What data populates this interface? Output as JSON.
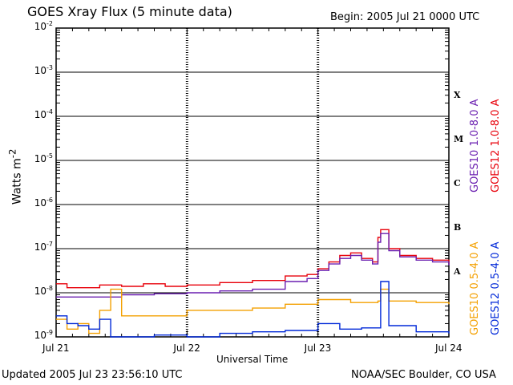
{
  "header": {
    "title": "GOES Xray Flux (5 minute data)",
    "begin": "Begin:  2005 Jul 21 0000 UTC"
  },
  "footer": {
    "updated": "Updated 2005 Jul 23 23:56:10 UTC",
    "credit": "NOAA/SEC Boulder, CO USA"
  },
  "colors": {
    "goes10_long": "#6a1fb0",
    "goes12_long": "#e8000a",
    "goes10_short": "#f4a000",
    "goes12_short": "#0028d8"
  },
  "chart_data": {
    "type": "line",
    "xlabel": "Universal Time",
    "ylabel": "Watts m",
    "ylabel_sup": "-2",
    "yscale": "log",
    "ylim": [
      1e-09,
      0.01
    ],
    "y_ticks": [
      {
        "base": "10",
        "exp": "-9",
        "value": 1e-09
      },
      {
        "base": "10",
        "exp": "-8",
        "value": 1e-08
      },
      {
        "base": "10",
        "exp": "-7",
        "value": 1e-07
      },
      {
        "base": "10",
        "exp": "-6",
        "value": 1e-06
      },
      {
        "base": "10",
        "exp": "-5",
        "value": 1e-05
      },
      {
        "base": "10",
        "exp": "-4",
        "value": 0.0001
      },
      {
        "base": "10",
        "exp": "-3",
        "value": 0.001
      },
      {
        "base": "10",
        "exp": "-2",
        "value": 0.01
      }
    ],
    "xlim": [
      "2005-07-21",
      "2005-07-24"
    ],
    "x_ticks": [
      {
        "label": "Jul 21",
        "value": "2005-07-21"
      },
      {
        "label": "Jul 22",
        "value": "2005-07-22"
      },
      {
        "label": "Jul 23",
        "value": "2005-07-23"
      },
      {
        "label": "Jul 24",
        "value": "2005-07-24"
      }
    ],
    "flare_classes": [
      {
        "label": "A",
        "value": 3e-08
      },
      {
        "label": "B",
        "value": 3e-07
      },
      {
        "label": "C",
        "value": 3e-06
      },
      {
        "label": "M",
        "value": 3e-05
      },
      {
        "label": "X",
        "value": 0.0003
      }
    ],
    "series": [
      {
        "name": "GOES12 1.0-8.0 A",
        "color": "#e8000a",
        "points": [
          [
            "2005-07-21T00:00",
            1.6e-08
          ],
          [
            "2005-07-21T02:00",
            1.3e-08
          ],
          [
            "2005-07-21T06:00",
            1.3e-08
          ],
          [
            "2005-07-21T08:00",
            1.5e-08
          ],
          [
            "2005-07-21T12:00",
            1.4e-08
          ],
          [
            "2005-07-21T16:00",
            1.6e-08
          ],
          [
            "2005-07-21T20:00",
            1.4e-08
          ],
          [
            "2005-07-22T00:00",
            1.5e-08
          ],
          [
            "2005-07-22T06:00",
            1.7e-08
          ],
          [
            "2005-07-22T12:00",
            1.9e-08
          ],
          [
            "2005-07-22T18:00",
            2.4e-08
          ],
          [
            "2005-07-22T22:00",
            2.6e-08
          ],
          [
            "2005-07-23T00:00",
            3.5e-08
          ],
          [
            "2005-07-23T02:00",
            5e-08
          ],
          [
            "2005-07-23T04:00",
            7e-08
          ],
          [
            "2005-07-23T06:00",
            8e-08
          ],
          [
            "2005-07-23T08:00",
            6e-08
          ],
          [
            "2005-07-23T10:00",
            5e-08
          ],
          [
            "2005-07-23T11:00",
            1.8e-07
          ],
          [
            "2005-07-23T11:30",
            2.7e-07
          ],
          [
            "2005-07-23T13:00",
            1e-07
          ],
          [
            "2005-07-23T15:00",
            7e-08
          ],
          [
            "2005-07-23T18:00",
            6e-08
          ],
          [
            "2005-07-23T21:00",
            5.5e-08
          ],
          [
            "2005-07-24T00:00",
            4.5e-08
          ]
        ]
      },
      {
        "name": "GOES10 1.0-8.0 A",
        "color": "#6a1fb0",
        "points": [
          [
            "2005-07-21T00:00",
            8e-09
          ],
          [
            "2005-07-21T06:00",
            8e-09
          ],
          [
            "2005-07-21T12:00",
            9e-09
          ],
          [
            "2005-07-21T18:00",
            9.5e-09
          ],
          [
            "2005-07-22T00:00",
            1e-08
          ],
          [
            "2005-07-22T06:00",
            1.1e-08
          ],
          [
            "2005-07-22T12:00",
            1.2e-08
          ],
          [
            "2005-07-22T18:00",
            1.8e-08
          ],
          [
            "2005-07-22T22:00",
            2.1e-08
          ],
          [
            "2005-07-23T00:00",
            3.2e-08
          ],
          [
            "2005-07-23T02:00",
            4.5e-08
          ],
          [
            "2005-07-23T04:00",
            6e-08
          ],
          [
            "2005-07-23T06:00",
            7e-08
          ],
          [
            "2005-07-23T08:00",
            5.5e-08
          ],
          [
            "2005-07-23T10:00",
            4.5e-08
          ],
          [
            "2005-07-23T11:00",
            1.4e-07
          ],
          [
            "2005-07-23T11:30",
            2.2e-07
          ],
          [
            "2005-07-23T13:00",
            9e-08
          ],
          [
            "2005-07-23T15:00",
            6.5e-08
          ],
          [
            "2005-07-23T18:00",
            5.5e-08
          ],
          [
            "2005-07-23T21:00",
            5e-08
          ],
          [
            "2005-07-24T00:00",
            4.2e-08
          ]
        ]
      },
      {
        "name": "GOES10 0.5-4.0 A",
        "color": "#f4a000",
        "points": [
          [
            "2005-07-21T00:00",
            2.5e-09
          ],
          [
            "2005-07-21T02:00",
            1.5e-09
          ],
          [
            "2005-07-21T04:00",
            2e-09
          ],
          [
            "2005-07-21T06:00",
            1.2e-09
          ],
          [
            "2005-07-21T08:00",
            4e-09
          ],
          [
            "2005-07-21T10:00",
            1.2e-08
          ],
          [
            "2005-07-21T12:00",
            3e-09
          ],
          [
            "2005-07-21T18:00",
            3e-09
          ],
          [
            "2005-07-22T00:00",
            4e-09
          ],
          [
            "2005-07-22T06:00",
            4e-09
          ],
          [
            "2005-07-22T12:00",
            4.5e-09
          ],
          [
            "2005-07-22T18:00",
            5.5e-09
          ],
          [
            "2005-07-23T00:00",
            7e-09
          ],
          [
            "2005-07-23T06:00",
            6e-09
          ],
          [
            "2005-07-23T11:00",
            6.5e-09
          ],
          [
            "2005-07-23T11:30",
            1.2e-08
          ],
          [
            "2005-07-23T13:00",
            6.5e-09
          ],
          [
            "2005-07-23T18:00",
            6e-09
          ],
          [
            "2005-07-24T00:00",
            5.5e-09
          ]
        ]
      },
      {
        "name": "GOES12 0.5-4.0 A",
        "color": "#0028d8",
        "points": [
          [
            "2005-07-21T00:00",
            3e-09
          ],
          [
            "2005-07-21T02:00",
            2e-09
          ],
          [
            "2005-07-21T04:00",
            1.8e-09
          ],
          [
            "2005-07-21T06:00",
            1.5e-09
          ],
          [
            "2005-07-21T08:00",
            2.5e-09
          ],
          [
            "2005-07-21T10:00",
            1e-09
          ],
          [
            "2005-07-21T14:00",
            1e-09
          ],
          [
            "2005-07-21T18:00",
            1.1e-09
          ],
          [
            "2005-07-22T00:00",
            1e-09
          ],
          [
            "2005-07-22T06:00",
            1.2e-09
          ],
          [
            "2005-07-22T12:00",
            1.3e-09
          ],
          [
            "2005-07-22T18:00",
            1.4e-09
          ],
          [
            "2005-07-23T00:00",
            2e-09
          ],
          [
            "2005-07-23T04:00",
            1.5e-09
          ],
          [
            "2005-07-23T08:00",
            1.6e-09
          ],
          [
            "2005-07-23T11:00",
            1.6e-09
          ],
          [
            "2005-07-23T11:30",
            1.8e-08
          ],
          [
            "2005-07-23T13:00",
            1.8e-09
          ],
          [
            "2005-07-23T18:00",
            1.3e-09
          ],
          [
            "2005-07-24T00:00",
            1.2e-09
          ]
        ]
      }
    ]
  }
}
